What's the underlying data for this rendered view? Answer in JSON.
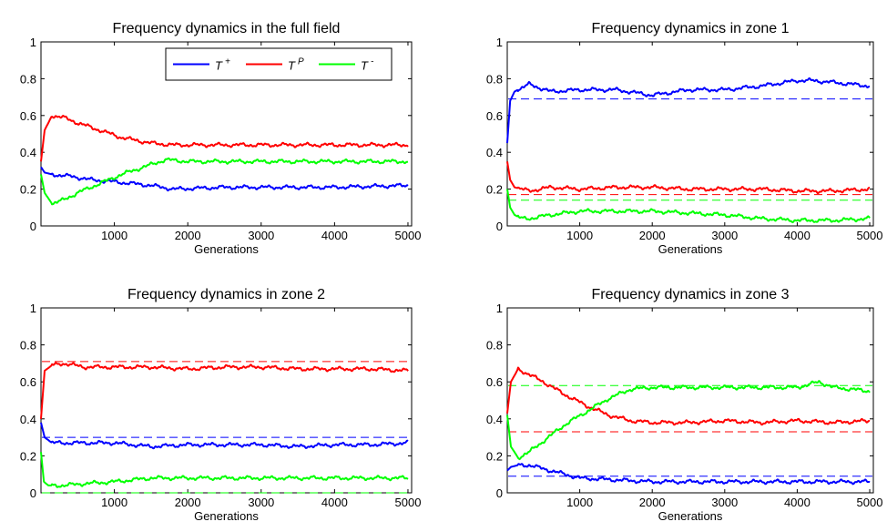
{
  "colors": {
    "T_plus": "#0000ff",
    "T_P": "#ff0000",
    "T_minus": "#00ff00"
  },
  "legend": {
    "position": "top-right",
    "entries": [
      {
        "key": "T_plus",
        "base": "T",
        "sup": "+"
      },
      {
        "key": "T_P",
        "base": "T",
        "sup": "P"
      },
      {
        "key": "T_minus",
        "base": "T",
        "sup": "-"
      }
    ]
  },
  "chart_data": [
    {
      "type": "line",
      "title": "Frequency dynamics in the full field",
      "xlabel": "Generations",
      "ylabel": "",
      "xlim": [
        0,
        5050
      ],
      "ylim": [
        0,
        1
      ],
      "xticks": [
        "1000",
        "2000",
        "3000",
        "4000",
        "5000"
      ],
      "yticks": [
        "0",
        "0.2",
        "0.4",
        "0.6",
        "0.8",
        "1"
      ],
      "grid": false,
      "has_legend": true,
      "series": [
        {
          "key": "T_plus",
          "x": [
            0,
            50,
            150,
            400,
            700,
            1000,
            1500,
            1800,
            2500,
            3000,
            4000,
            5000
          ],
          "values": [
            0.32,
            0.29,
            0.28,
            0.27,
            0.25,
            0.24,
            0.22,
            0.2,
            0.21,
            0.21,
            0.21,
            0.22
          ]
        },
        {
          "key": "T_P",
          "x": [
            0,
            50,
            150,
            300,
            500,
            800,
            1100,
            1500,
            1800,
            2500,
            3000,
            4000,
            5000
          ],
          "values": [
            0.35,
            0.52,
            0.6,
            0.59,
            0.56,
            0.52,
            0.48,
            0.45,
            0.44,
            0.44,
            0.44,
            0.44,
            0.44
          ]
        },
        {
          "key": "T_minus",
          "x": [
            0,
            50,
            150,
            300,
            500,
            800,
            1100,
            1400,
            1700,
            2000,
            3000,
            4000,
            5000
          ],
          "values": [
            0.28,
            0.18,
            0.12,
            0.14,
            0.18,
            0.23,
            0.28,
            0.32,
            0.36,
            0.35,
            0.35,
            0.35,
            0.35
          ]
        }
      ],
      "reference_lines": []
    },
    {
      "type": "line",
      "title": "Frequency dynamics in zone 1",
      "xlabel": "Generations",
      "ylabel": "",
      "xlim": [
        0,
        5050
      ],
      "ylim": [
        0,
        1
      ],
      "xticks": [
        "1000",
        "2000",
        "3000",
        "4000",
        "5000"
      ],
      "yticks": [
        "0",
        "0.2",
        "0.4",
        "0.6",
        "0.8",
        "1"
      ],
      "grid": false,
      "has_legend": false,
      "series": [
        {
          "key": "T_plus",
          "x": [
            0,
            40,
            100,
            300,
            600,
            1000,
            1500,
            2000,
            2500,
            3000,
            3500,
            4000,
            4200,
            4500,
            5000
          ],
          "values": [
            0.45,
            0.68,
            0.73,
            0.77,
            0.73,
            0.74,
            0.74,
            0.71,
            0.74,
            0.74,
            0.76,
            0.79,
            0.79,
            0.78,
            0.76
          ]
        },
        {
          "key": "T_P",
          "x": [
            0,
            40,
            100,
            300,
            600,
            1000,
            1500,
            2000,
            2500,
            3000,
            3500,
            4000,
            4500,
            5000
          ],
          "values": [
            0.35,
            0.25,
            0.21,
            0.19,
            0.21,
            0.2,
            0.21,
            0.21,
            0.2,
            0.2,
            0.2,
            0.19,
            0.19,
            0.2
          ]
        },
        {
          "key": "T_minus",
          "x": [
            0,
            40,
            100,
            200,
            300,
            600,
            1000,
            1500,
            2000,
            2500,
            3000,
            3500,
            4000,
            4500,
            5000
          ],
          "values": [
            0.2,
            0.1,
            0.06,
            0.04,
            0.04,
            0.06,
            0.08,
            0.08,
            0.08,
            0.07,
            0.06,
            0.04,
            0.03,
            0.03,
            0.04
          ]
        }
      ],
      "reference_lines": [
        {
          "key": "T_plus",
          "y": 0.69
        },
        {
          "key": "T_P",
          "y": 0.17
        },
        {
          "key": "T_minus",
          "y": 0.14
        }
      ]
    },
    {
      "type": "line",
      "title": "Frequency dynamics in zone 2",
      "xlabel": "Generations",
      "ylabel": "",
      "xlim": [
        0,
        5050
      ],
      "ylim": [
        0,
        1
      ],
      "xticks": [
        "1000",
        "2000",
        "3000",
        "4000",
        "5000"
      ],
      "yticks": [
        "0",
        "0.2",
        "0.4",
        "0.6",
        "0.8",
        "1"
      ],
      "grid": false,
      "has_legend": false,
      "series": [
        {
          "key": "T_plus",
          "x": [
            0,
            50,
            150,
            300,
            600,
            1000,
            1500,
            2000,
            2500,
            3000,
            3500,
            4000,
            4500,
            5000
          ],
          "values": [
            0.38,
            0.3,
            0.27,
            0.27,
            0.27,
            0.27,
            0.25,
            0.26,
            0.26,
            0.26,
            0.25,
            0.26,
            0.26,
            0.27
          ]
        },
        {
          "key": "T_P",
          "x": [
            0,
            50,
            150,
            300,
            600,
            1000,
            1500,
            2000,
            2500,
            3000,
            3500,
            4000,
            4500,
            5000
          ],
          "values": [
            0.4,
            0.66,
            0.69,
            0.7,
            0.68,
            0.68,
            0.68,
            0.67,
            0.68,
            0.68,
            0.67,
            0.67,
            0.67,
            0.66
          ]
        },
        {
          "key": "T_minus",
          "x": [
            0,
            40,
            100,
            300,
            600,
            1000,
            1500,
            2000,
            2500,
            3000,
            3500,
            4000,
            4500,
            5000
          ],
          "values": [
            0.22,
            0.06,
            0.04,
            0.04,
            0.05,
            0.06,
            0.08,
            0.08,
            0.08,
            0.08,
            0.08,
            0.08,
            0.08,
            0.08
          ]
        }
      ],
      "reference_lines": [
        {
          "key": "T_plus",
          "y": 0.3
        },
        {
          "key": "T_P",
          "y": 0.71
        },
        {
          "key": "T_minus",
          "y": 0.0
        }
      ]
    },
    {
      "type": "line",
      "title": "Frequency dynamics in zone 3",
      "xlabel": "Generations",
      "ylabel": "",
      "xlim": [
        0,
        5050
      ],
      "ylim": [
        0,
        1
      ],
      "xticks": [
        "1000",
        "2000",
        "3000",
        "4000",
        "5000"
      ],
      "yticks": [
        "0",
        "0.2",
        "0.4",
        "0.6",
        "0.8",
        "1"
      ],
      "grid": false,
      "has_legend": false,
      "series": [
        {
          "key": "T_plus",
          "x": [
            0,
            50,
            150,
            300,
            500,
            800,
            1000,
            1500,
            2000,
            2500,
            3000,
            3500,
            4000,
            4500,
            5000
          ],
          "values": [
            0.12,
            0.14,
            0.15,
            0.15,
            0.13,
            0.1,
            0.08,
            0.07,
            0.06,
            0.06,
            0.06,
            0.06,
            0.06,
            0.06,
            0.06
          ]
        },
        {
          "key": "T_P",
          "x": [
            0,
            50,
            150,
            300,
            500,
            800,
            1100,
            1400,
            1700,
            2000,
            2500,
            3000,
            3500,
            4000,
            4500,
            5000
          ],
          "values": [
            0.43,
            0.6,
            0.67,
            0.64,
            0.6,
            0.53,
            0.47,
            0.42,
            0.39,
            0.38,
            0.38,
            0.39,
            0.38,
            0.39,
            0.38,
            0.39
          ]
        },
        {
          "key": "T_minus",
          "x": [
            0,
            50,
            150,
            300,
            500,
            800,
            1100,
            1400,
            1700,
            2000,
            2500,
            3000,
            3500,
            4000,
            4300,
            4500,
            5000
          ],
          "values": [
            0.42,
            0.25,
            0.19,
            0.22,
            0.28,
            0.37,
            0.44,
            0.51,
            0.56,
            0.57,
            0.57,
            0.57,
            0.57,
            0.57,
            0.6,
            0.57,
            0.55
          ]
        }
      ],
      "reference_lines": [
        {
          "key": "T_plus",
          "y": 0.09
        },
        {
          "key": "T_P",
          "y": 0.33
        },
        {
          "key": "T_minus",
          "y": 0.58
        }
      ]
    }
  ]
}
